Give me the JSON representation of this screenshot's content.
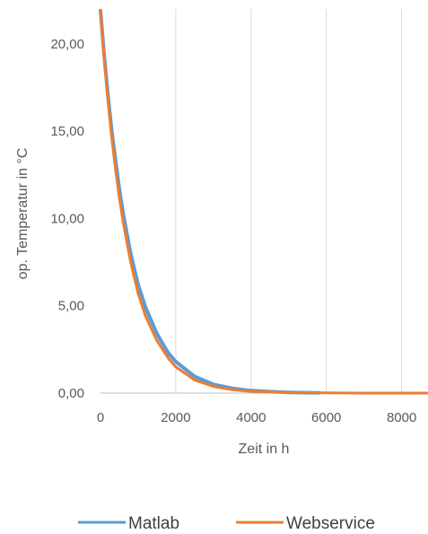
{
  "chart_data": {
    "type": "line",
    "xlabel": "Zeit in h",
    "ylabel": "op. Temperatur in °C",
    "xlim": [
      0,
      8700
    ],
    "ylim": [
      0,
      22
    ],
    "x_ticks": [
      0,
      2000,
      4000,
      6000,
      8000
    ],
    "x_tick_labels": [
      "0",
      "2000",
      "4000",
      "6000",
      "8000"
    ],
    "y_ticks": [
      0,
      5,
      10,
      15,
      20
    ],
    "y_tick_labels": [
      "0,00",
      "5,00",
      "10,00",
      "15,00",
      "20,00"
    ],
    "grid": "vertical",
    "legend_position": "bottom",
    "series": [
      {
        "name": "Matlab",
        "color": "#5B9BD5",
        "x": [
          0,
          100,
          200,
          300,
          400,
          500,
          600,
          800,
          1000,
          1200,
          1500,
          1800,
          2000,
          2500,
          3000,
          3500,
          4000,
          4500,
          5000,
          5500,
          5800
        ],
        "y": [
          21.9,
          19.3,
          17.0,
          15.0,
          13.3,
          11.7,
          10.3,
          8.0,
          6.2,
          4.9,
          3.4,
          2.3,
          1.8,
          0.95,
          0.5,
          0.27,
          0.14,
          0.08,
          0.04,
          0.02,
          0.01
        ]
      },
      {
        "name": "Webservice",
        "color": "#ED7D31",
        "x": [
          0,
          100,
          200,
          300,
          400,
          500,
          600,
          800,
          1000,
          1200,
          1500,
          1800,
          2000,
          2500,
          3000,
          3500,
          4000,
          5000,
          6000,
          7000,
          8000,
          8700
        ],
        "y": [
          21.9,
          19.1,
          16.7,
          14.6,
          12.8,
          11.2,
          9.8,
          7.5,
          5.7,
          4.4,
          3.0,
          2.0,
          1.5,
          0.75,
          0.38,
          0.19,
          0.1,
          0.03,
          0.01,
          0.0,
          0.0,
          0.0
        ]
      }
    ]
  }
}
